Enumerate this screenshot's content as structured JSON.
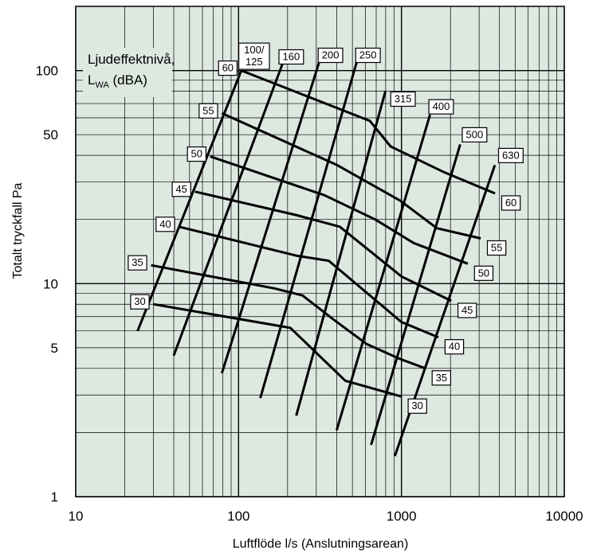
{
  "chart_data": {
    "type": "line",
    "title": "",
    "xlabel": "Luftflöde l/s (Anslutningsarean)",
    "ylabel": "Totalt tryckfall Pa",
    "xscale": "log",
    "yscale": "log",
    "xlim": [
      10,
      10000
    ],
    "ylim": [
      1,
      200
    ],
    "x_ticks": [
      "10",
      "100",
      "1000",
      "10000"
    ],
    "y_ticks": [
      "1",
      "5",
      "10",
      "50",
      "100"
    ],
    "grid": true,
    "background": "#dde8e1",
    "annotation": {
      "line1": "Ljudeffektnivå,",
      "line2_main": "L",
      "line2_sub": "WA",
      "line2_rest": " (dBA)"
    },
    "size_series": [
      {
        "name": "100/125",
        "points": [
          [
            24,
            6
          ],
          [
            104,
            100
          ]
        ]
      },
      {
        "name": "160",
        "points": [
          [
            40,
            4.6
          ],
          [
            188,
            110
          ]
        ]
      },
      {
        "name": "200",
        "points": [
          [
            79,
            3.8
          ],
          [
            313,
            110
          ]
        ]
      },
      {
        "name": "250",
        "points": [
          [
            136,
            2.9
          ],
          [
            532,
            110
          ]
        ]
      },
      {
        "name": "315",
        "points": [
          [
            226,
            2.4
          ],
          [
            798,
            80
          ]
        ]
      },
      {
        "name": "400",
        "points": [
          [
            400,
            2.05
          ],
          [
            1498,
            62
          ]
        ]
      },
      {
        "name": "500",
        "points": [
          [
            651,
            1.75
          ],
          [
            2295,
            45
          ]
        ]
      },
      {
        "name": "630",
        "points": [
          [
            911,
            1.55
          ],
          [
            3748,
            36
          ]
        ]
      }
    ],
    "sound_series": [
      {
        "name": "30",
        "points": [
          [
            30,
            8
          ],
          [
            208,
            6.2
          ],
          [
            452,
            3.5
          ],
          [
            1000,
            2.95
          ]
        ],
        "label_left": "30",
        "label_right": "30"
      },
      {
        "name": "35",
        "points": [
          [
            29,
            12.2
          ],
          [
            166,
            9.5
          ],
          [
            247,
            8.8
          ],
          [
            381,
            6.8
          ],
          [
            612,
            5.2
          ],
          [
            1000,
            4.4
          ],
          [
            1405,
            4
          ]
        ],
        "label_left": "35",
        "label_right": "35"
      },
      {
        "name": "40",
        "points": [
          [
            43,
            18.5
          ],
          [
            229,
            13.5
          ],
          [
            358,
            12.8
          ],
          [
            1000,
            6.6
          ],
          [
            1686,
            5.6
          ]
        ],
        "label_left": "40",
        "label_right": "40"
      },
      {
        "name": "45",
        "points": [
          [
            54,
            27
          ],
          [
            224,
            21
          ],
          [
            418,
            18.5
          ],
          [
            1000,
            10.8
          ],
          [
            2023,
            8.3
          ]
        ],
        "label_left": "45",
        "label_right": "45"
      },
      {
        "name": "50",
        "points": [
          [
            67,
            39.5
          ],
          [
            336,
            26
          ],
          [
            690,
            20
          ],
          [
            1189,
            15.5
          ],
          [
            2556,
            12.4
          ]
        ],
        "label_left": "50",
        "label_right": "50"
      },
      {
        "name": "55",
        "points": [
          [
            79,
            63
          ],
          [
            403,
            36
          ],
          [
            982,
            24.5
          ],
          [
            1649,
            18.2
          ],
          [
            3066,
            16.3
          ]
        ],
        "label_left": "55",
        "label_right": "55"
      },
      {
        "name": "60",
        "points": [
          [
            104,
            100
          ],
          [
            640,
            58
          ],
          [
            858,
            44
          ],
          [
            1800,
            33.5
          ],
          [
            3754,
            26.5
          ]
        ],
        "label_left": "60",
        "label_right": "60"
      }
    ],
    "size_labels": [
      "100/125",
      "160",
      "200",
      "250",
      "315",
      "400",
      "500",
      "630"
    ]
  }
}
